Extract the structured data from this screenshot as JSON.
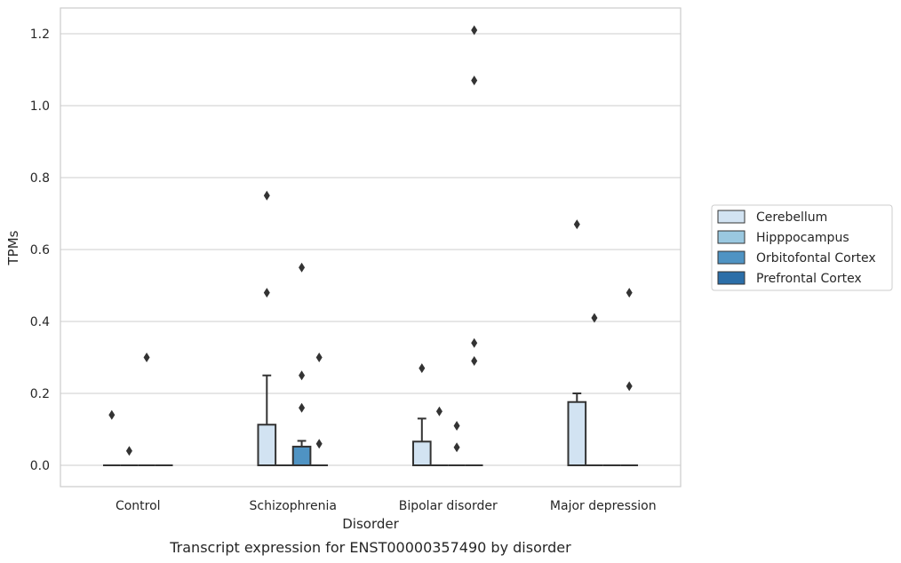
{
  "chart_data": {
    "type": "box",
    "caption": "Transcript expression for ENST00000357490 by disorder",
    "xlabel": "Disorder",
    "ylabel": "TPMs",
    "ylim": [
      -0.06,
      1.27
    ],
    "yticks": [
      0.0,
      0.2,
      0.4,
      0.6,
      0.8,
      1.0,
      1.2
    ],
    "ytick_labels": [
      "0.0",
      "0.2",
      "0.4",
      "0.6",
      "0.8",
      "1.0",
      "1.2"
    ],
    "grid": "horizontal",
    "legend_position": "right",
    "categories": [
      "Control",
      "Schizophrenia",
      "Bipolar disorder",
      "Major depression"
    ],
    "series": [
      {
        "name": "Cerebellum",
        "color": "#d2e3f2",
        "boxes": [
          {
            "q1": 0,
            "median": 0,
            "q3": 0,
            "whisker_low": 0,
            "whisker_high": 0,
            "outliers": [
              0.14
            ]
          },
          {
            "q1": 0,
            "median": 0,
            "q3": 0.113,
            "whisker_low": 0,
            "whisker_high": 0.25,
            "outliers": [
              0.48,
              0.75
            ]
          },
          {
            "q1": 0,
            "median": 0,
            "q3": 0.066,
            "whisker_low": 0,
            "whisker_high": 0.13,
            "outliers": [
              0.27
            ]
          },
          {
            "q1": 0,
            "median": 0,
            "q3": 0.176,
            "whisker_low": 0,
            "whisker_high": 0.2,
            "outliers": [
              0.67
            ]
          }
        ]
      },
      {
        "name": "Hipppocampus",
        "color": "#9ac8e0",
        "boxes": [
          {
            "q1": 0,
            "median": 0,
            "q3": 0,
            "whisker_low": 0,
            "whisker_high": 0,
            "outliers": [
              0.04
            ]
          },
          {
            "q1": 0,
            "median": 0,
            "q3": 0,
            "whisker_low": 0,
            "whisker_high": 0,
            "outliers": []
          },
          {
            "q1": 0,
            "median": 0,
            "q3": 0,
            "whisker_low": 0,
            "whisker_high": 0,
            "outliers": [
              0.15
            ]
          },
          {
            "q1": 0,
            "median": 0,
            "q3": 0,
            "whisker_low": 0,
            "whisker_high": 0,
            "outliers": [
              0.41
            ]
          }
        ]
      },
      {
        "name": "Orbitofontal Cortex",
        "color": "#4f93c3",
        "boxes": [
          {
            "q1": 0,
            "median": 0,
            "q3": 0,
            "whisker_low": 0,
            "whisker_high": 0,
            "outliers": [
              0.3
            ]
          },
          {
            "q1": 0,
            "median": 0,
            "q3": 0.052,
            "whisker_low": 0,
            "whisker_high": 0.068,
            "outliers": [
              0.16,
              0.25,
              0.55
            ]
          },
          {
            "q1": 0,
            "median": 0,
            "q3": 0,
            "whisker_low": 0,
            "whisker_high": 0,
            "outliers": [
              0.05,
              0.11
            ]
          },
          {
            "q1": 0,
            "median": 0,
            "q3": 0,
            "whisker_low": 0,
            "whisker_high": 0,
            "outliers": []
          }
        ]
      },
      {
        "name": "Prefrontal Cortex",
        "color": "#2b6ea8",
        "boxes": [
          {
            "q1": 0,
            "median": 0,
            "q3": 0,
            "whisker_low": 0,
            "whisker_high": 0,
            "outliers": []
          },
          {
            "q1": 0,
            "median": 0,
            "q3": 0,
            "whisker_low": 0,
            "whisker_high": 0,
            "outliers": [
              0.06,
              0.3
            ]
          },
          {
            "q1": 0,
            "median": 0,
            "q3": 0,
            "whisker_low": 0,
            "whisker_high": 0,
            "outliers": [
              0.29,
              0.34,
              1.07,
              1.21
            ]
          },
          {
            "q1": 0,
            "median": 0,
            "q3": 0,
            "whisker_low": 0,
            "whisker_high": 0,
            "outliers": [
              0.22,
              0.48
            ]
          }
        ]
      }
    ]
  }
}
